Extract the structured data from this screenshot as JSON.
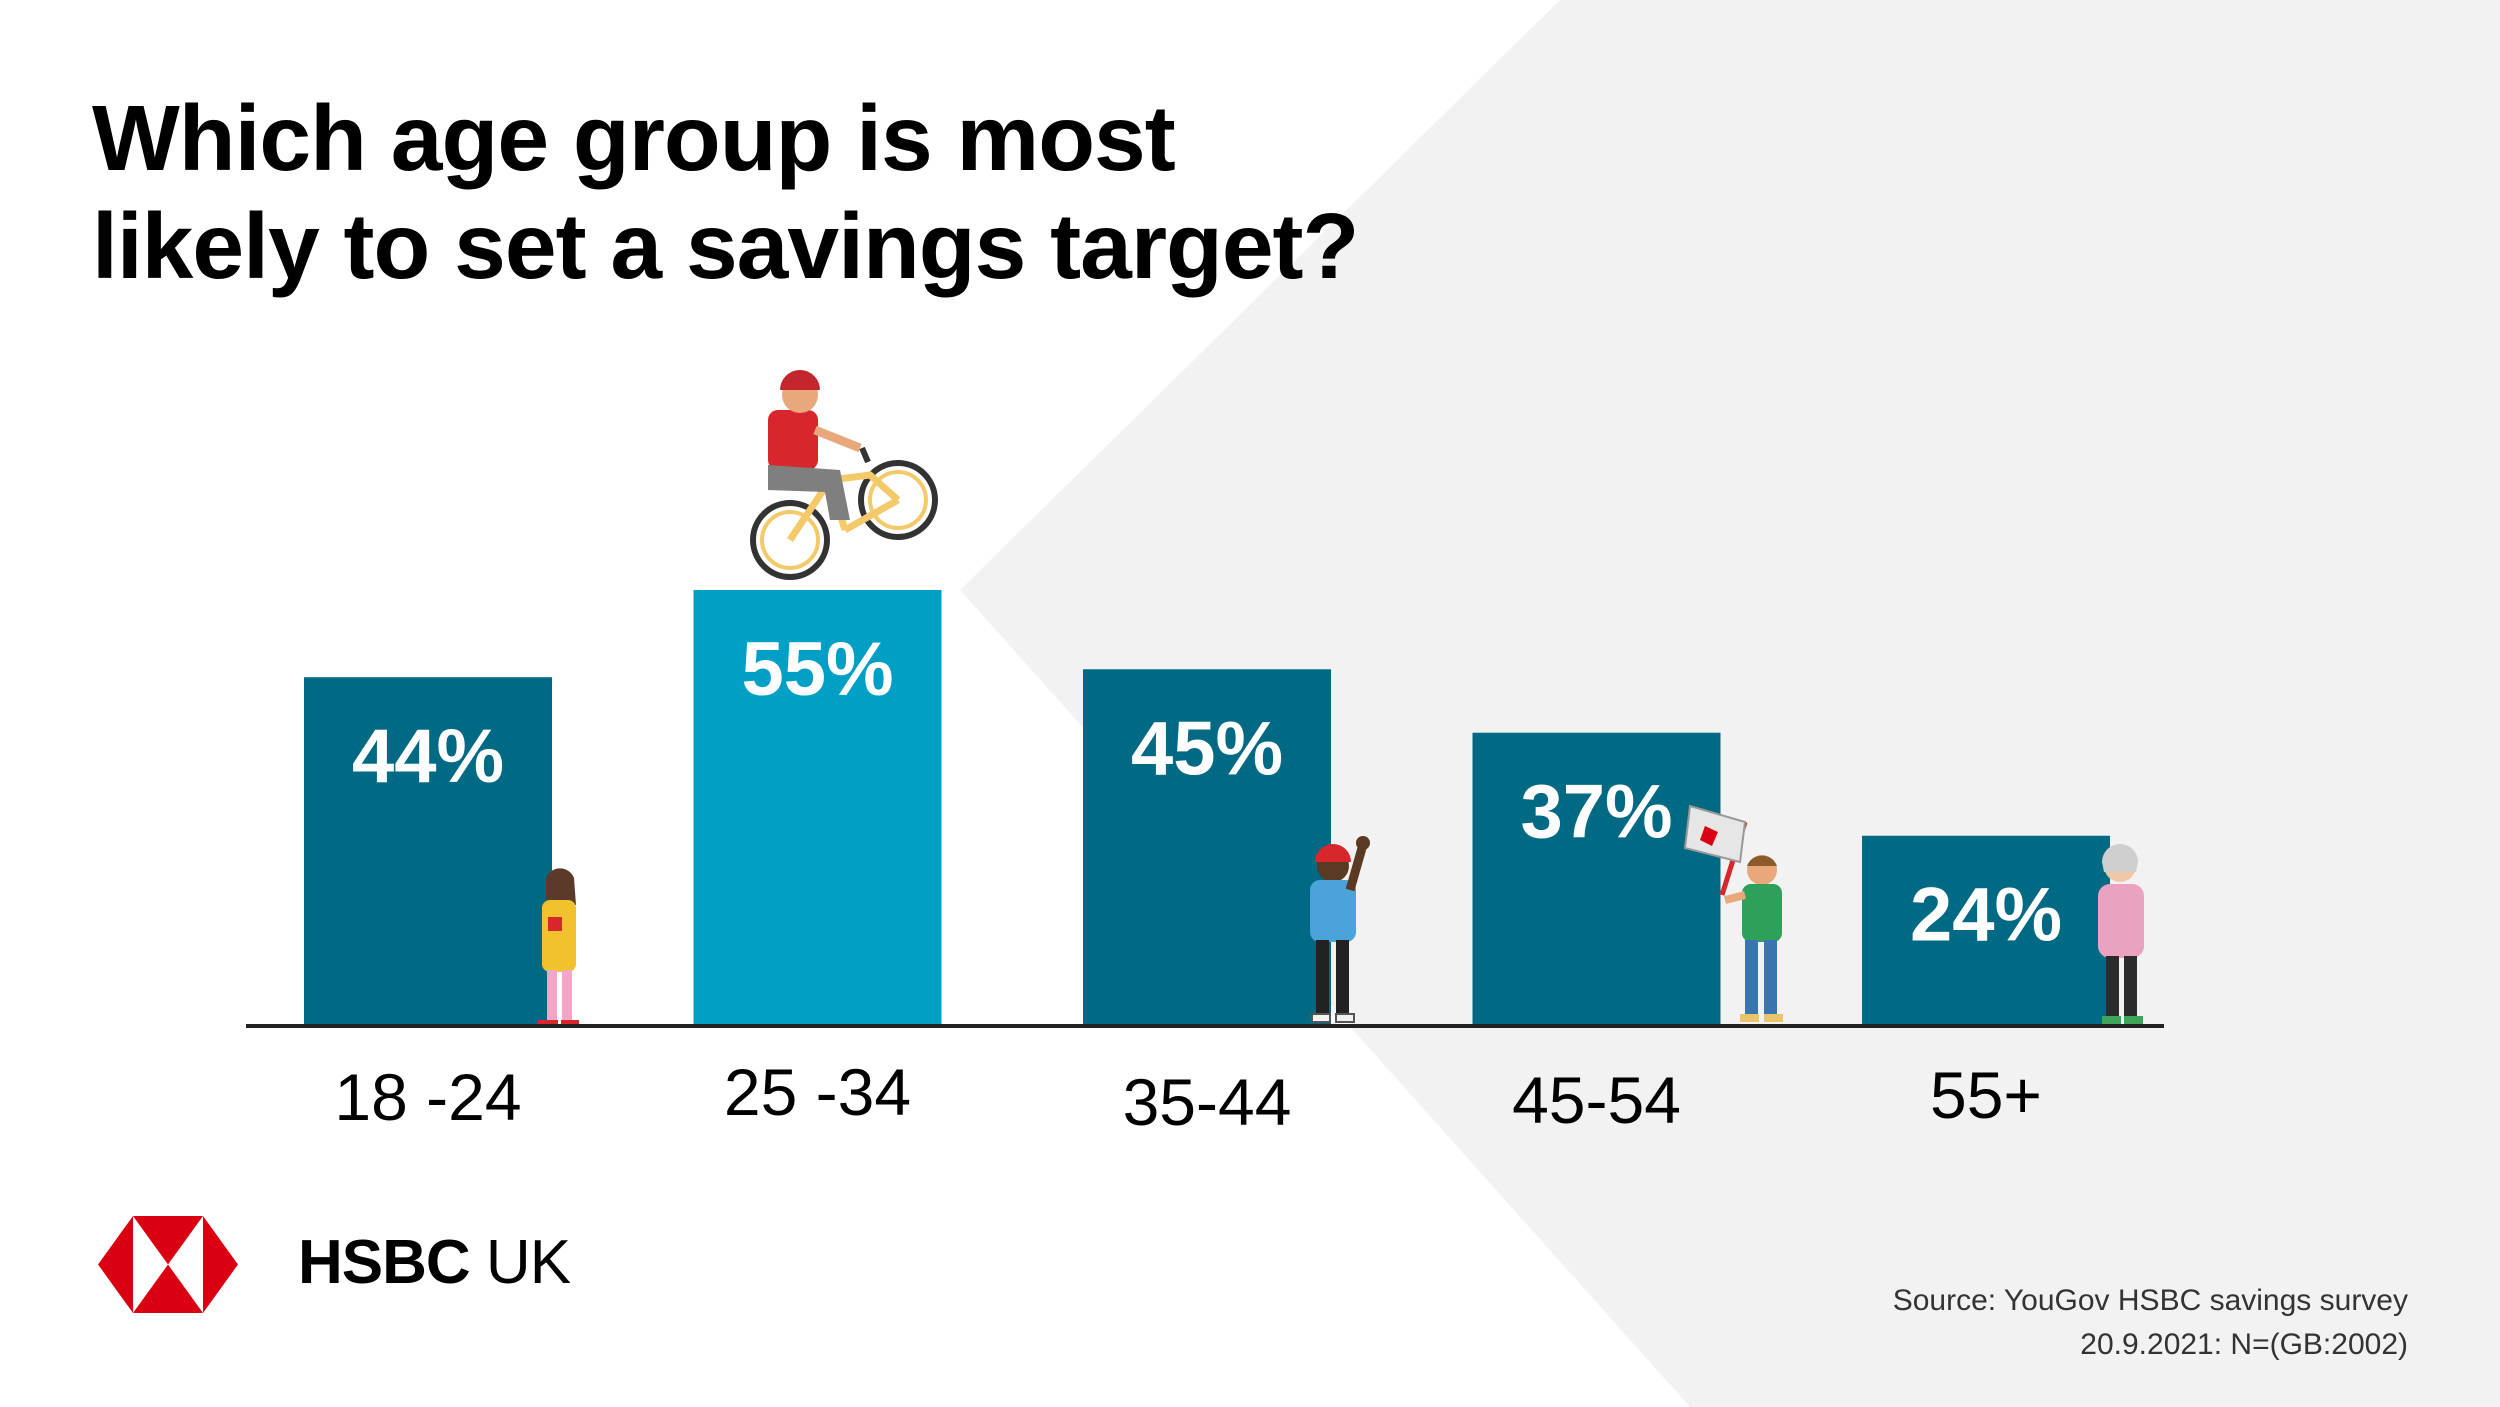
{
  "title": {
    "line1": "Which age group is most",
    "line2": "likely to set a savings target?"
  },
  "chart_data": {
    "type": "bar",
    "title": "Which age group is most likely to set a savings target?",
    "categories": [
      "18 -24",
      "25 -34",
      "35-44",
      "45-54",
      "55+"
    ],
    "values": [
      44,
      55,
      45,
      37,
      24
    ],
    "value_labels": [
      "44%",
      "55%",
      "45%",
      "37%",
      "24%"
    ],
    "xlabel": "",
    "ylabel": "",
    "ylim": [
      0,
      55
    ],
    "grid": false,
    "highlight_index": 1,
    "colors": {
      "bar": "#006983",
      "highlight": "#00A0C6"
    }
  },
  "brand": {
    "bold": "HSBC",
    "regular": "UK",
    "logo_red": "#DB0011"
  },
  "source": {
    "line1": "Source: YouGov HSBC savings survey",
    "line2": "20.9.2021: N=(GB:2002)"
  },
  "background_shape_color": "#F2F2F2",
  "illustration_icons": [
    "woman-icon",
    "cyclist-icon",
    "man-raised-fist-icon",
    "man-with-flag-icon",
    "older-woman-icon"
  ]
}
